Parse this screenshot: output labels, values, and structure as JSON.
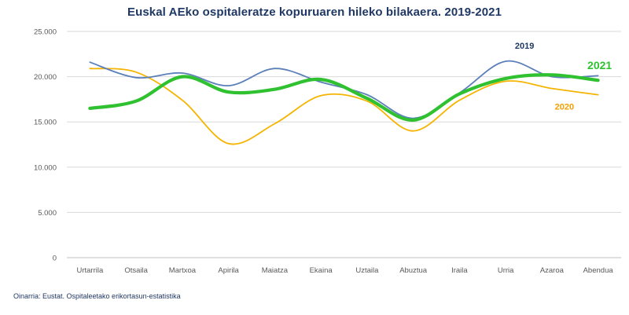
{
  "chart_data": {
    "type": "line",
    "title": "Euskal AEko ospitaleratze kopuruaren hileko bilakaera. 2019-2021",
    "xlabel": "",
    "ylabel": "",
    "ylim": [
      0,
      25000
    ],
    "yticks": [
      0,
      5000,
      10000,
      15000,
      20000,
      25000
    ],
    "ytick_labels": [
      "0",
      "5.000",
      "10.000",
      "15.000",
      "20.000",
      "25.000"
    ],
    "grid": true,
    "categories": [
      "Urtarrila",
      "Otsaila",
      "Martxoa",
      "Apirila",
      "Maiatza",
      "Ekaina",
      "Uztaila",
      "Abuztua",
      "Iraila",
      "Urria",
      "Azaroa",
      "Abendua"
    ],
    "series": [
      {
        "name": "2019",
        "color": "#5b7fb9",
        "values": [
          21600,
          19900,
          20400,
          19000,
          20900,
          19400,
          18000,
          15400,
          18200,
          21700,
          20000,
          20100
        ]
      },
      {
        "name": "2020",
        "color": "#f5b400",
        "values": [
          20900,
          20500,
          17400,
          12600,
          14800,
          17900,
          17300,
          14000,
          17400,
          19500,
          18700,
          18000
        ]
      },
      {
        "name": "2021",
        "color": "#2fc12f",
        "values": [
          16500,
          17300,
          20000,
          18300,
          18600,
          19700,
          17600,
          15200,
          18100,
          19800,
          20200,
          19600
        ]
      }
    ],
    "series_label_colors": {
      "2019": "#1f3864",
      "2020": "#f0a000",
      "2021": "#2fc12f"
    }
  },
  "source_note": "Oinarria: Eustat. Ospitaleetako erikortasun-estatistika"
}
